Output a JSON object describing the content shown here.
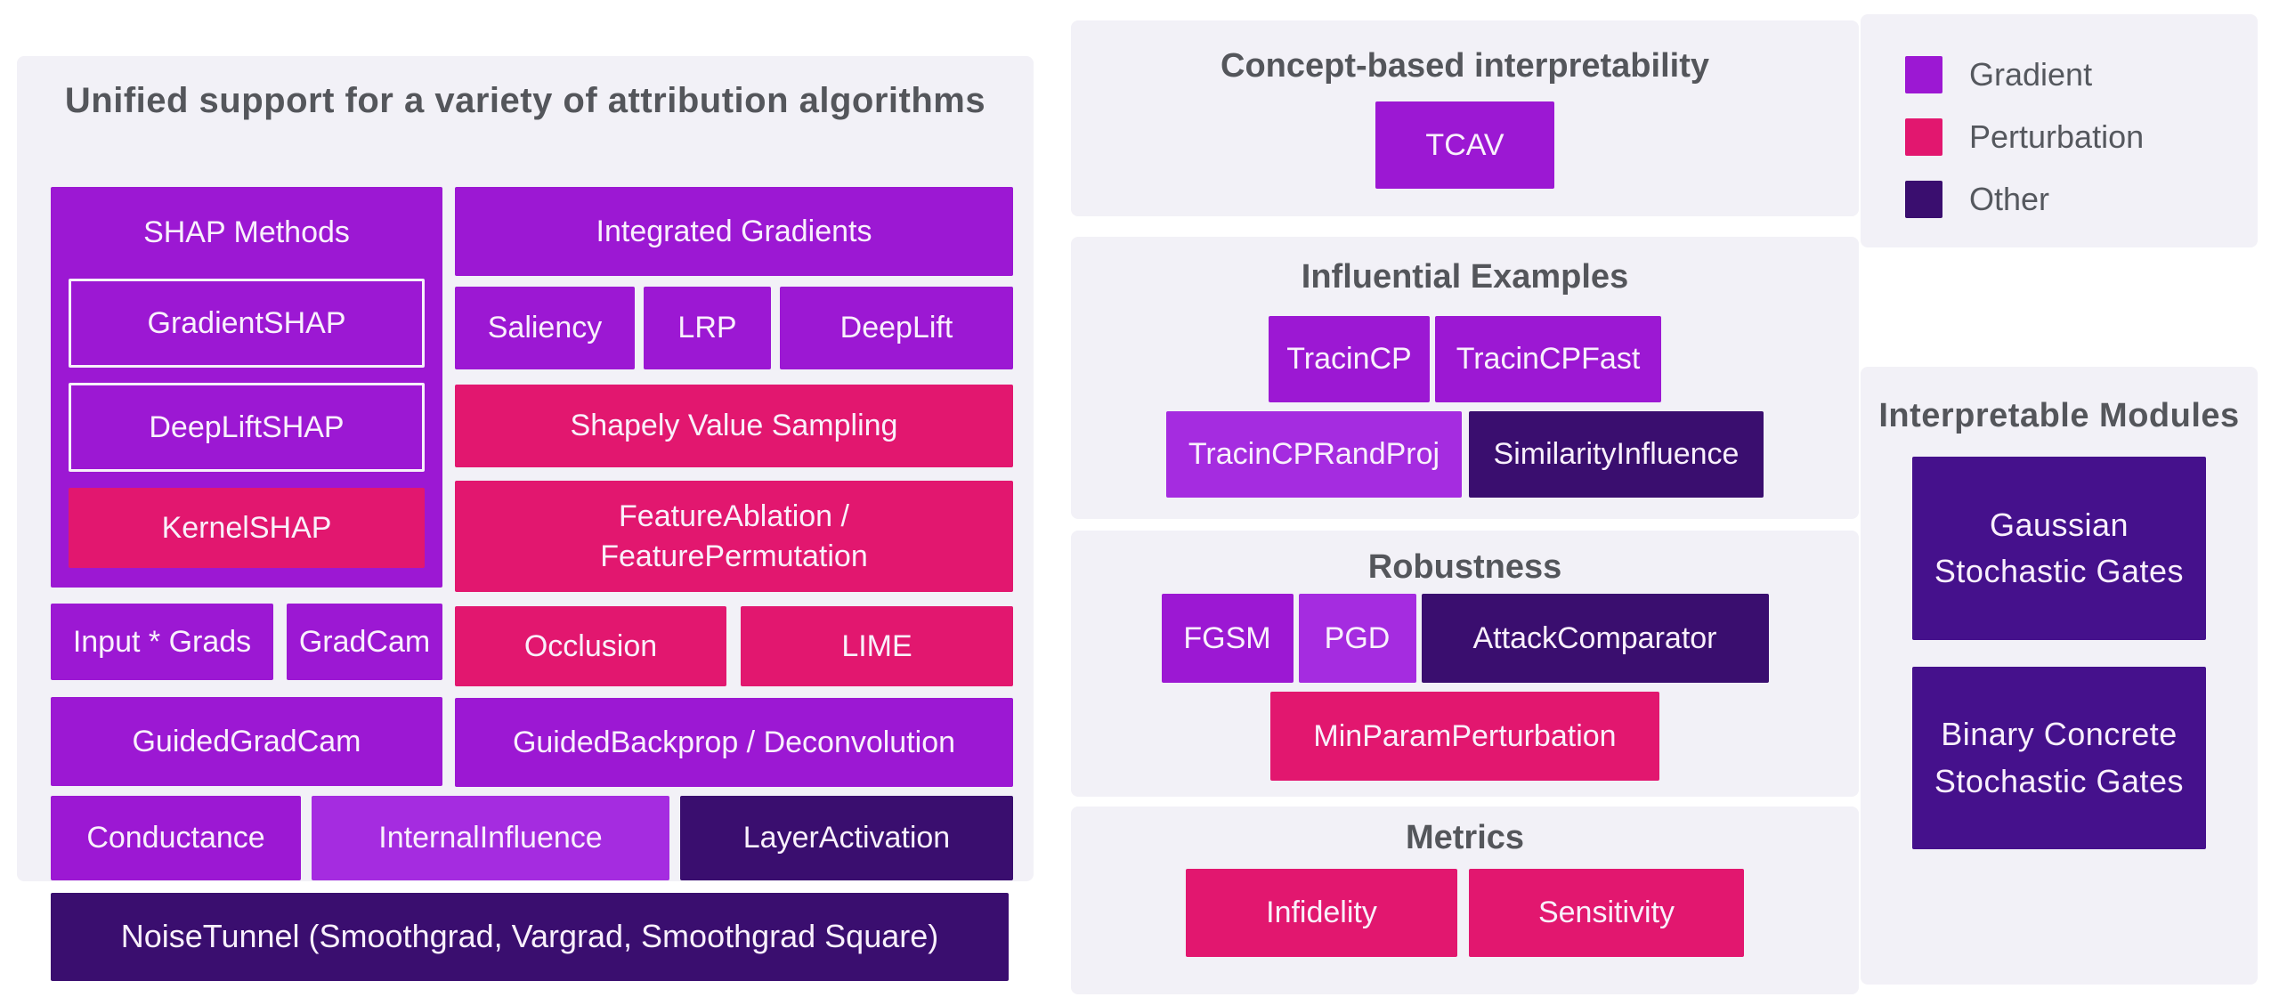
{
  "colors": {
    "gradient": "#9c18d3",
    "gradient_light": "#a52ce0",
    "perturbation": "#e2176f",
    "other": "#3a0e6f",
    "module": "#45118c",
    "panel_bg": "#f2f1f7",
    "title_text": "#54565b",
    "box_text": "#f9f0fc"
  },
  "attribution": {
    "title": "Unified support for a variety of attribution algorithms",
    "shap_group": {
      "label": "SHAP Methods",
      "items": [
        {
          "label": "GradientSHAP"
        },
        {
          "label": "DeepLiftSHAP"
        },
        {
          "label": "KernelSHAP"
        }
      ]
    },
    "boxes": {
      "integrated_gradients": "Integrated Gradients",
      "saliency": "Saliency",
      "lrp": "LRP",
      "deeplift": "DeepLift",
      "shapely_value_sampling": "Shapely Value Sampling",
      "feature_ablation": "FeatureAblation /\nFeaturePermutation",
      "input_grads": "Input * Grads",
      "gradcam": "GradCam",
      "occlusion": "Occlusion",
      "lime": "LIME",
      "guided_gradcam": "GuidedGradCam",
      "guided_backprop": "GuidedBackprop / Deconvolution",
      "conductance": "Conductance",
      "internal_influence": "InternalInfluence",
      "layer_activation": "LayerActivation",
      "noise_tunnel": "NoiseTunnel (Smoothgrad, Vargrad, Smoothgrad Square)"
    }
  },
  "concept": {
    "title": "Concept-based interpretability",
    "tcav": "TCAV"
  },
  "influential": {
    "title": "Influential Examples",
    "items": [
      "TracinCP",
      "TracinCPFast",
      "TracinCPRandProj",
      "SimilarityInfluence"
    ]
  },
  "robustness": {
    "title": "Robustness",
    "items": [
      "FGSM",
      "PGD",
      "AttackComparator",
      "MinParamPerturbation"
    ]
  },
  "metrics": {
    "title": "Metrics",
    "items": [
      "Infidelity",
      "Sensitivity"
    ]
  },
  "legend": {
    "items": [
      {
        "label": "Gradient"
      },
      {
        "label": "Perturbation"
      },
      {
        "label": "Other"
      }
    ]
  },
  "modules": {
    "title": "Interpretable Modules",
    "items": [
      "Gaussian Stochastic Gates",
      "Binary Concrete Stochastic Gates"
    ]
  }
}
